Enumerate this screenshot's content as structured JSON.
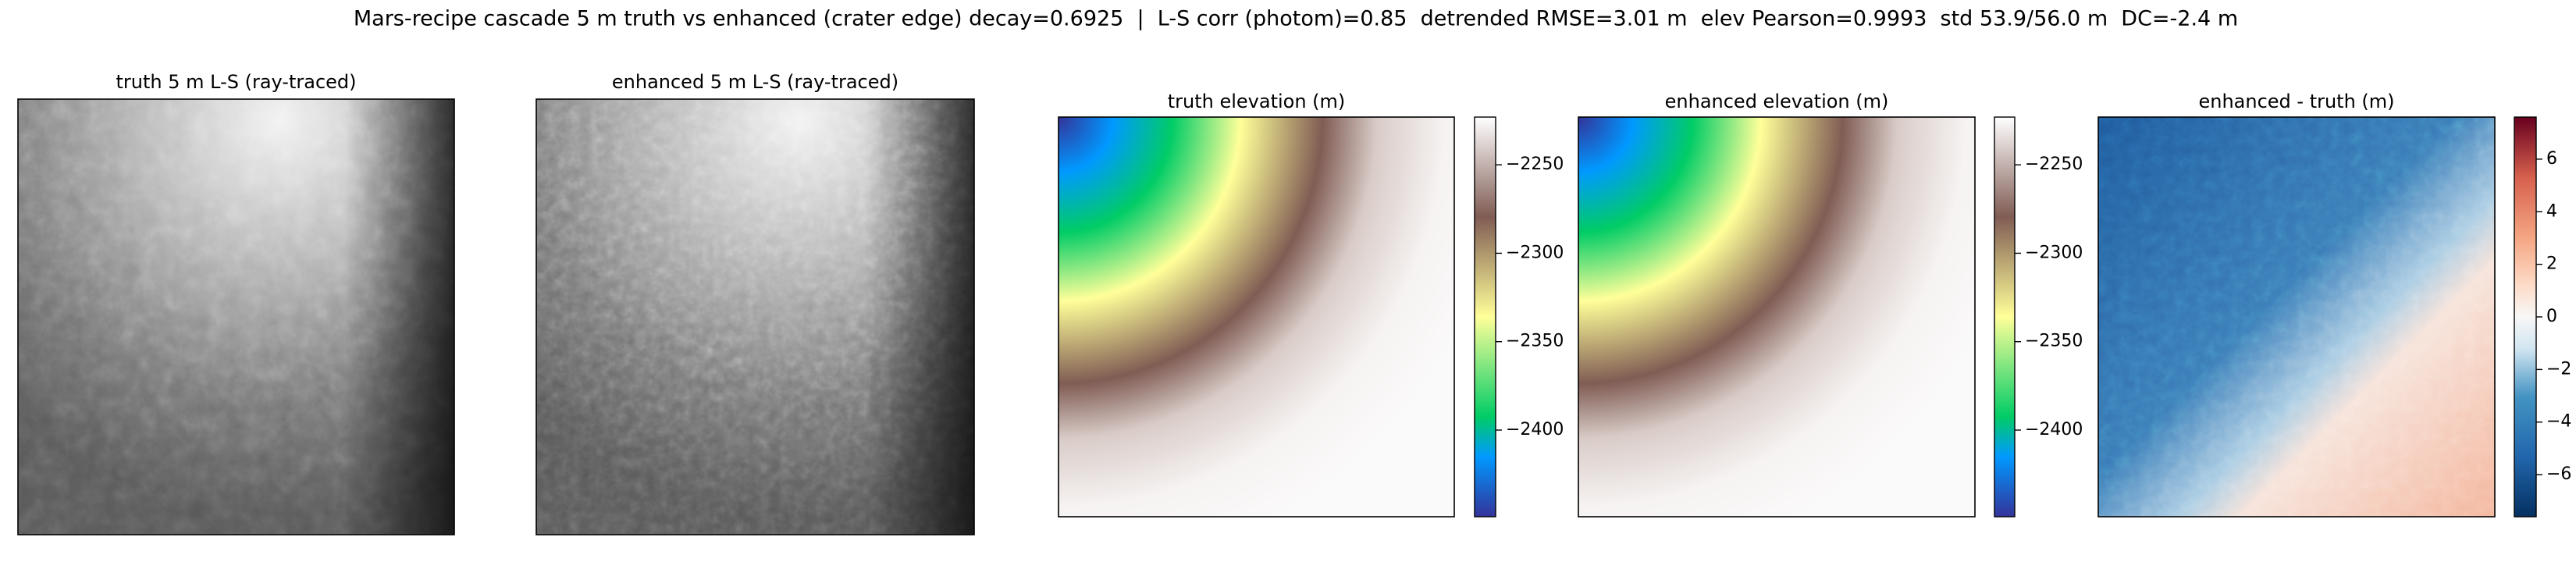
{
  "title": "Mars-recipe cascade 5 m truth vs enhanced (crater edge) decay=0.6925  |  L-S corr (photom)=0.85  detrended RMSE=3.01 m  elev Pearson=0.9993  std 53.9/56.0 m  DC=-2.4 m",
  "chart_data": [
    {
      "type": "image",
      "title": "truth 5 m L-S (ray-traced)",
      "cmap": "gray"
    },
    {
      "type": "image",
      "title": "enhanced 5 m L-S (ray-traced)",
      "cmap": "gray"
    },
    {
      "type": "image",
      "title": "truth elevation (m)",
      "cmap": "terrain",
      "colorbar": {
        "ylim": [
          -2449,
          -2223
        ],
        "yticks": [
          {
            "value": -2250,
            "label": "−2250"
          },
          {
            "value": -2300,
            "label": "−2300"
          },
          {
            "value": -2350,
            "label": "−2350"
          },
          {
            "value": -2400,
            "label": "−2400"
          }
        ]
      }
    },
    {
      "type": "image",
      "title": "enhanced elevation (m)",
      "cmap": "terrain",
      "colorbar": {
        "ylim": [
          -2449,
          -2223
        ],
        "yticks": [
          {
            "value": -2250,
            "label": "−2250"
          },
          {
            "value": -2300,
            "label": "−2300"
          },
          {
            "value": -2350,
            "label": "−2350"
          },
          {
            "value": -2400,
            "label": "−2400"
          }
        ]
      }
    },
    {
      "type": "image",
      "title": "enhanced - truth (m)",
      "cmap": "diff",
      "colorbar": {
        "ylim": [
          -7.6,
          7.6
        ],
        "yticks": [
          {
            "value": -6,
            "label": "−6"
          },
          {
            "value": -4,
            "label": "−4"
          },
          {
            "value": -2,
            "label": "−2"
          },
          0,
          2,
          4,
          6
        ]
      }
    }
  ]
}
